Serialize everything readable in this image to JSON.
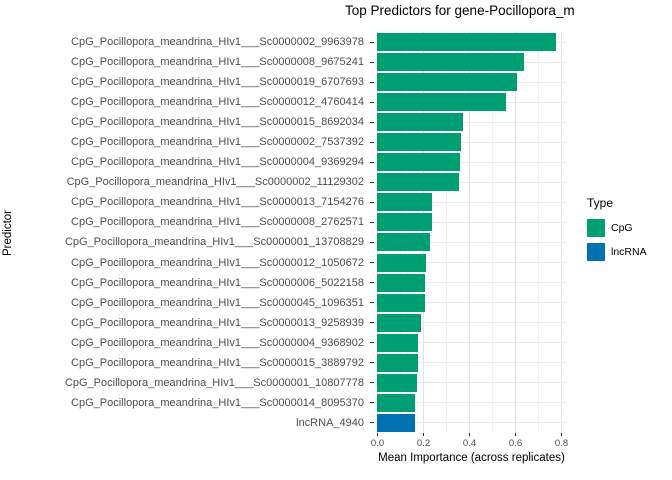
{
  "title": "Top Predictors for gene-Pocillopora_m",
  "axes": {
    "x_title": "Mean Importance (across replicates)",
    "y_title": "Predictor",
    "x_ticks": [
      "0.0",
      "0.2",
      "0.4",
      "0.6",
      "0.8"
    ]
  },
  "legend": {
    "title": "Type",
    "items": [
      {
        "label": "CpG",
        "color": "#009E73"
      },
      {
        "label": "lncRNA",
        "color": "#0072B2"
      }
    ]
  },
  "colors": {
    "background": "#FFFFFF",
    "grid_major": "#E3E3E3",
    "grid_minor": "#F1F1F1",
    "grid_horizontal": "#EBEBEB",
    "axis_text": "#4D4D4D",
    "tick_mark": "#333333",
    "title_text": "#000000"
  },
  "chart_data": {
    "type": "bar",
    "orientation": "horizontal",
    "title": "Top Predictors for gene-Pocillopora_m",
    "xlabel": "Mean Importance (across replicates)",
    "ylabel": "Predictor",
    "xlim": [
      0,
      0.85
    ],
    "x_tick_values": [
      0.0,
      0.2,
      0.4,
      0.6,
      0.8
    ],
    "grid": true,
    "legend_title": "Type",
    "legend_position": "right",
    "categories": [
      "CpG_Pocillopora_meandrina_HIv1___Sc0000002_9963978",
      "CpG_Pocillopora_meandrina_HIv1___Sc0000008_9675241",
      "CpG_Pocillopora_meandrina_HIv1___Sc0000019_6707693",
      "CpG_Pocillopora_meandrina_HIv1___Sc0000012_4760414",
      "CpG_Pocillopora_meandrina_HIv1___Sc0000015_8692034",
      "CpG_Pocillopora_meandrina_HIv1___Sc0000002_7537392",
      "CpG_Pocillopora_meandrina_HIv1___Sc0000004_9369294",
      "CpG_Pocillopora_meandrina_HIv1___Sc0000002_11129302",
      "CpG_Pocillopora_meandrina_HIv1___Sc0000013_7154276",
      "CpG_Pocillopora_meandrina_HIv1___Sc0000008_2762571",
      "CpG_Pocillopora_meandrina_HIv1___Sc0000001_13708829",
      "CpG_Pocillopora_meandrina_HIv1___Sc0000012_1050672",
      "CpG_Pocillopora_meandrina_HIv1___Sc0000006_5022158",
      "CpG_Pocillopora_meandrina_HIv1___Sc0000045_1096351",
      "CpG_Pocillopora_meandrina_HIv1___Sc0000013_9258939",
      "CpG_Pocillopora_meandrina_HIv1___Sc0000004_9368902",
      "CpG_Pocillopora_meandrina_HIv1___Sc0000015_3889792",
      "CpG_Pocillopora_meandrina_HIv1___Sc0000001_10807778",
      "CpG_Pocillopora_meandrina_HIv1___Sc0000014_8095370",
      "lncRNA_4940"
    ],
    "values": [
      0.78,
      0.64,
      0.61,
      0.56,
      0.375,
      0.365,
      0.36,
      0.355,
      0.24,
      0.238,
      0.232,
      0.215,
      0.21,
      0.207,
      0.19,
      0.18,
      0.18,
      0.175,
      0.167,
      0.167
    ],
    "types": [
      "CpG",
      "CpG",
      "CpG",
      "CpG",
      "CpG",
      "CpG",
      "CpG",
      "CpG",
      "CpG",
      "CpG",
      "CpG",
      "CpG",
      "CpG",
      "CpG",
      "CpG",
      "CpG",
      "CpG",
      "CpG",
      "CpG",
      "lncRNA"
    ]
  }
}
